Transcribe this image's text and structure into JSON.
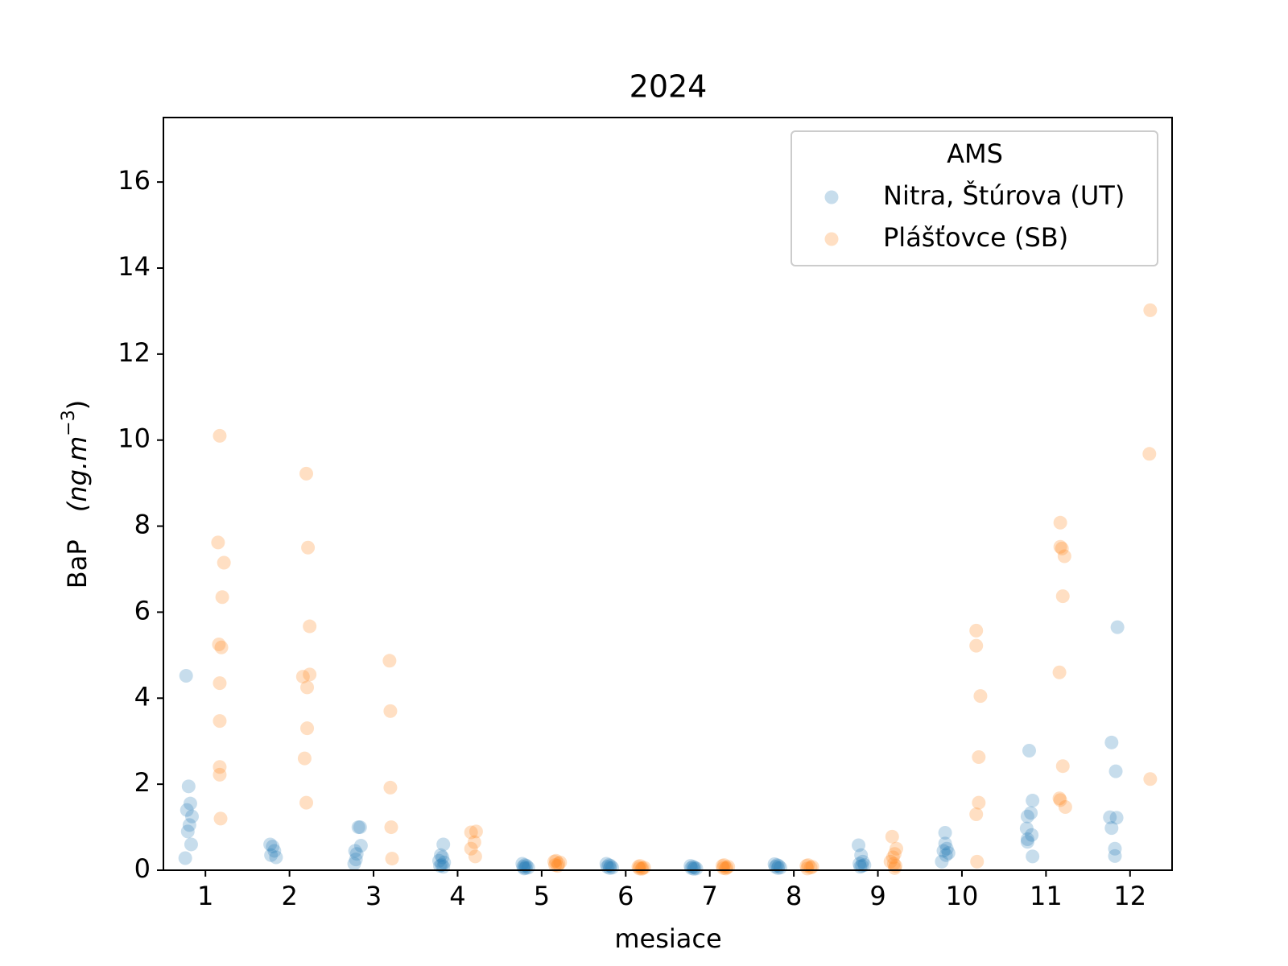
{
  "chart_data": {
    "type": "scatter",
    "title": "2024",
    "xlabel": "mesiace",
    "ylabel": {
      "name": "BaP",
      "unit": "(ng.m",
      "exponent": "−3",
      "close": ")"
    },
    "xlim": [
      0.5,
      12.5
    ],
    "xticks": [
      1,
      2,
      3,
      4,
      5,
      6,
      7,
      8,
      9,
      10,
      11,
      12
    ],
    "ylim": [
      0,
      17.5
    ],
    "yticks": [
      0,
      2,
      4,
      6,
      8,
      10,
      12,
      14,
      16
    ],
    "grid": false,
    "legend_title": "AMS",
    "legend_position": "upper right",
    "alpha": 0.25,
    "series": [
      {
        "name": "Nitra, Štúrova (UT)",
        "color": "#1f77b4",
        "x": [
          0.77,
          0.8,
          0.82,
          0.78,
          0.84,
          0.81,
          0.79,
          0.83,
          0.76,
          1.77,
          1.8,
          1.82,
          1.78,
          1.84,
          2.82,
          2.84,
          2.85,
          2.78,
          2.8,
          2.79,
          2.77,
          3.83,
          3.8,
          3.82,
          3.78,
          3.84,
          3.81,
          3.79,
          3.83,
          4.77,
          4.8,
          4.82,
          4.78,
          4.84,
          4.81,
          4.79,
          5.77,
          5.8,
          5.82,
          5.78,
          5.84,
          5.81,
          6.77,
          6.8,
          6.82,
          6.78,
          6.84,
          6.81,
          7.77,
          7.8,
          7.82,
          7.78,
          7.84,
          7.81,
          8.77,
          8.8,
          8.82,
          8.78,
          8.84,
          8.81,
          8.79,
          9.8,
          9.8,
          9.82,
          9.78,
          9.84,
          9.81,
          9.76,
          10.8,
          10.84,
          10.82,
          10.78,
          10.77,
          10.83,
          10.78,
          10.78,
          10.84,
          11.85,
          11.78,
          11.83,
          11.76,
          11.84,
          11.78,
          11.82,
          11.82
        ],
        "values": [
          4.52,
          1.95,
          1.55,
          1.4,
          1.25,
          1.05,
          0.9,
          0.6,
          0.28,
          0.6,
          0.55,
          0.45,
          0.35,
          0.3,
          1.0,
          1.0,
          0.57,
          0.45,
          0.38,
          0.25,
          0.15,
          0.6,
          0.35,
          0.3,
          0.22,
          0.18,
          0.12,
          0.1,
          0.08,
          0.15,
          0.12,
          0.1,
          0.08,
          0.06,
          0.05,
          0.04,
          0.15,
          0.12,
          0.1,
          0.08,
          0.06,
          0.05,
          0.1,
          0.08,
          0.06,
          0.05,
          0.04,
          0.03,
          0.14,
          0.12,
          0.1,
          0.08,
          0.06,
          0.05,
          0.58,
          0.35,
          0.2,
          0.15,
          0.12,
          0.1,
          0.08,
          0.87,
          0.62,
          0.5,
          0.45,
          0.4,
          0.35,
          0.2,
          2.78,
          1.62,
          1.33,
          1.25,
          0.97,
          0.82,
          0.72,
          0.66,
          0.32,
          5.65,
          2.97,
          2.3,
          1.23,
          1.22,
          0.98,
          0.5,
          0.33
        ]
      },
      {
        "name": "Plášťovce (SB)",
        "color": "#ff7f0e",
        "x": [
          1.17,
          1.15,
          1.22,
          1.2,
          1.16,
          1.19,
          1.17,
          1.17,
          1.17,
          1.17,
          1.18,
          2.2,
          2.22,
          2.24,
          2.16,
          2.24,
          2.21,
          2.21,
          2.18,
          2.2,
          3.19,
          3.2,
          3.2,
          3.21,
          3.22,
          4.22,
          4.16,
          4.2,
          4.16,
          4.21,
          5.17,
          5.15,
          5.22,
          5.2,
          5.16,
          5.19,
          6.17,
          6.15,
          6.22,
          6.2,
          6.16,
          6.19,
          7.17,
          7.15,
          7.22,
          7.2,
          7.16,
          7.19,
          8.17,
          8.15,
          8.22,
          8.2,
          8.16,
          9.17,
          9.22,
          9.2,
          9.18,
          9.15,
          9.19,
          9.21,
          9.2,
          10.17,
          10.17,
          10.22,
          10.2,
          10.2,
          10.17,
          10.18,
          11.17,
          11.17,
          11.19,
          11.22,
          11.2,
          11.16,
          11.2,
          11.16,
          11.17,
          11.23,
          12.24,
          12.23,
          12.24
        ],
        "values": [
          10.1,
          7.62,
          7.15,
          6.35,
          5.25,
          5.18,
          4.35,
          3.47,
          2.4,
          2.22,
          1.2,
          9.22,
          7.5,
          5.67,
          4.5,
          4.55,
          4.25,
          3.3,
          2.6,
          1.57,
          4.87,
          3.7,
          1.92,
          1.0,
          0.27,
          0.9,
          0.88,
          0.65,
          0.5,
          0.32,
          0.22,
          0.2,
          0.18,
          0.15,
          0.12,
          0.1,
          0.1,
          0.08,
          0.06,
          0.05,
          0.04,
          0.03,
          0.12,
          0.1,
          0.08,
          0.06,
          0.05,
          0.04,
          0.12,
          0.1,
          0.08,
          0.06,
          0.04,
          0.78,
          0.5,
          0.38,
          0.3,
          0.2,
          0.15,
          0.1,
          0.05,
          5.57,
          5.22,
          4.05,
          2.63,
          1.57,
          1.3,
          0.2,
          8.08,
          7.52,
          7.48,
          7.3,
          6.37,
          4.6,
          2.42,
          1.67,
          1.63,
          1.47,
          13.02,
          9.68,
          2.12
        ]
      }
    ]
  }
}
